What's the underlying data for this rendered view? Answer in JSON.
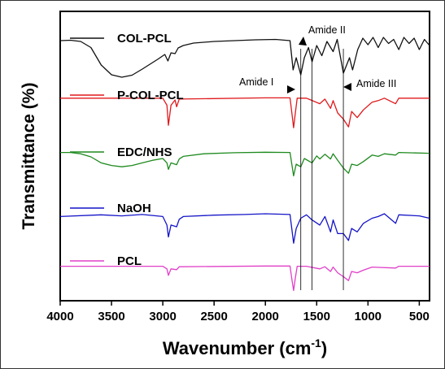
{
  "chart_data": {
    "type": "line",
    "xlabel": "Wavenumber (cm",
    "xlabel_sup": "-1",
    "xlabel_close": ")",
    "ylabel": "Transmittance (%)",
    "xlim": [
      4000,
      400
    ],
    "x_reversed": true,
    "xticks": [
      "4000",
      "3500",
      "3000",
      "2500",
      "2000",
      "1500",
      "1000",
      "500"
    ],
    "grid": false,
    "legend_placement": "left, stacked with each spectrum",
    "series": [
      {
        "name": "COL-PCL",
        "color": "#111111",
        "points": [
          [
            4000,
            0.92
          ],
          [
            3900,
            0.93
          ],
          [
            3800,
            0.9
          ],
          [
            3700,
            0.75
          ],
          [
            3600,
            0.32
          ],
          [
            3500,
            0.08
          ],
          [
            3400,
            0.02
          ],
          [
            3300,
            0.07
          ],
          [
            3200,
            0.22
          ],
          [
            3100,
            0.38
          ],
          [
            3050,
            0.46
          ],
          [
            2980,
            0.58
          ],
          [
            2950,
            0.42
          ],
          [
            2920,
            0.62
          ],
          [
            2880,
            0.6
          ],
          [
            2850,
            0.74
          ],
          [
            2800,
            0.8
          ],
          [
            2700,
            0.86
          ],
          [
            2500,
            0.9
          ],
          [
            2300,
            0.92
          ],
          [
            2100,
            0.94
          ],
          [
            1900,
            0.95
          ],
          [
            1760,
            0.92
          ],
          [
            1730,
            0.2
          ],
          [
            1700,
            0.5
          ],
          [
            1655,
            0.08
          ],
          [
            1620,
            0.5
          ],
          [
            1580,
            0.75
          ],
          [
            1545,
            0.4
          ],
          [
            1500,
            0.8
          ],
          [
            1450,
            0.55
          ],
          [
            1400,
            0.9
          ],
          [
            1340,
            0.65
          ],
          [
            1300,
            0.95
          ],
          [
            1240,
            0.12
          ],
          [
            1180,
            0.5
          ],
          [
            1150,
            0.2
          ],
          [
            1100,
            0.7
          ],
          [
            1050,
            0.98
          ],
          [
            1000,
            0.82
          ],
          [
            950,
            1.0
          ],
          [
            900,
            0.75
          ],
          [
            850,
            1.0
          ],
          [
            800,
            0.85
          ],
          [
            750,
            0.95
          ],
          [
            700,
            0.7
          ],
          [
            650,
            1.0
          ],
          [
            600,
            0.85
          ],
          [
            550,
            0.98
          ],
          [
            500,
            0.7
          ],
          [
            450,
            0.95
          ],
          [
            400,
            0.8
          ]
        ]
      },
      {
        "name": "P-COL-PCL",
        "color": "#e0191c",
        "points": [
          [
            4000,
            0.98
          ],
          [
            3000,
            0.98
          ],
          [
            2960,
            0.75
          ],
          [
            2945,
            0.1
          ],
          [
            2920,
            0.75
          ],
          [
            2880,
            0.92
          ],
          [
            2865,
            0.7
          ],
          [
            2840,
            0.95
          ],
          [
            2000,
            0.99
          ],
          [
            1760,
            0.99
          ],
          [
            1740,
            0.45
          ],
          [
            1725,
            0.02
          ],
          [
            1710,
            0.45
          ],
          [
            1690,
            0.98
          ],
          [
            1600,
            0.98
          ],
          [
            1470,
            0.8
          ],
          [
            1420,
            0.95
          ],
          [
            1365,
            0.65
          ],
          [
            1340,
            0.9
          ],
          [
            1295,
            0.5
          ],
          [
            1240,
            0.3
          ],
          [
            1190,
            0.05
          ],
          [
            1160,
            0.55
          ],
          [
            1105,
            0.35
          ],
          [
            1045,
            0.6
          ],
          [
            960,
            0.85
          ],
          [
            900,
            0.9
          ],
          [
            840,
            0.98
          ],
          [
            731,
            0.8
          ],
          [
            700,
            0.98
          ],
          [
            400,
            0.98
          ]
        ]
      },
      {
        "name": "EDC/NHS",
        "color": "#1f8a1f",
        "points": [
          [
            4000,
            0.95
          ],
          [
            3900,
            0.95
          ],
          [
            3800,
            0.9
          ],
          [
            3700,
            0.78
          ],
          [
            3600,
            0.55
          ],
          [
            3500,
            0.45
          ],
          [
            3400,
            0.4
          ],
          [
            3300,
            0.45
          ],
          [
            3200,
            0.55
          ],
          [
            3100,
            0.65
          ],
          [
            3000,
            0.72
          ],
          [
            2960,
            0.55
          ],
          [
            2945,
            0.3
          ],
          [
            2920,
            0.55
          ],
          [
            2865,
            0.48
          ],
          [
            2840,
            0.7
          ],
          [
            2800,
            0.8
          ],
          [
            2600,
            0.9
          ],
          [
            2300,
            0.94
          ],
          [
            2000,
            0.96
          ],
          [
            1760,
            0.95
          ],
          [
            1725,
            0.05
          ],
          [
            1700,
            0.5
          ],
          [
            1655,
            0.4
          ],
          [
            1620,
            0.72
          ],
          [
            1545,
            0.55
          ],
          [
            1500,
            0.82
          ],
          [
            1470,
            0.7
          ],
          [
            1420,
            0.88
          ],
          [
            1365,
            0.7
          ],
          [
            1340,
            0.9
          ],
          [
            1295,
            0.65
          ],
          [
            1240,
            0.35
          ],
          [
            1190,
            0.15
          ],
          [
            1160,
            0.5
          ],
          [
            1105,
            0.45
          ],
          [
            1045,
            0.6
          ],
          [
            960,
            0.85
          ],
          [
            900,
            0.8
          ],
          [
            840,
            0.9
          ],
          [
            731,
            0.85
          ],
          [
            700,
            0.95
          ],
          [
            400,
            0.92
          ]
        ]
      },
      {
        "name": "NaOH",
        "color": "#1414c8",
        "points": [
          [
            4000,
            0.8
          ],
          [
            3600,
            0.85
          ],
          [
            3400,
            0.82
          ],
          [
            3200,
            0.86
          ],
          [
            3000,
            0.8
          ],
          [
            2960,
            0.55
          ],
          [
            2945,
            0.2
          ],
          [
            2920,
            0.55
          ],
          [
            2865,
            0.5
          ],
          [
            2840,
            0.72
          ],
          [
            2800,
            0.8
          ],
          [
            2500,
            0.84
          ],
          [
            2200,
            0.86
          ],
          [
            2000,
            0.88
          ],
          [
            1760,
            0.86
          ],
          [
            1725,
            0.02
          ],
          [
            1700,
            0.45
          ],
          [
            1655,
            0.75
          ],
          [
            1600,
            0.85
          ],
          [
            1545,
            0.7
          ],
          [
            1470,
            0.55
          ],
          [
            1420,
            0.8
          ],
          [
            1365,
            0.35
          ],
          [
            1340,
            0.7
          ],
          [
            1295,
            0.3
          ],
          [
            1240,
            0.3
          ],
          [
            1190,
            0.1
          ],
          [
            1160,
            0.45
          ],
          [
            1105,
            0.35
          ],
          [
            1045,
            0.6
          ],
          [
            960,
            0.75
          ],
          [
            900,
            0.8
          ],
          [
            840,
            0.88
          ],
          [
            731,
            0.6
          ],
          [
            700,
            0.85
          ],
          [
            500,
            0.82
          ],
          [
            400,
            0.75
          ]
        ]
      },
      {
        "name": "PCL",
        "color": "#e040c8",
        "points": [
          [
            4000,
            0.95
          ],
          [
            3000,
            0.95
          ],
          [
            2960,
            0.85
          ],
          [
            2945,
            0.6
          ],
          [
            2920,
            0.85
          ],
          [
            2865,
            0.82
          ],
          [
            2840,
            0.93
          ],
          [
            2000,
            0.96
          ],
          [
            1760,
            0.96
          ],
          [
            1740,
            0.4
          ],
          [
            1725,
            0.02
          ],
          [
            1710,
            0.45
          ],
          [
            1690,
            0.95
          ],
          [
            1600,
            0.95
          ],
          [
            1470,
            0.85
          ],
          [
            1420,
            0.93
          ],
          [
            1365,
            0.75
          ],
          [
            1340,
            0.92
          ],
          [
            1295,
            0.7
          ],
          [
            1240,
            0.55
          ],
          [
            1190,
            0.4
          ],
          [
            1160,
            0.75
          ],
          [
            1105,
            0.7
          ],
          [
            1045,
            0.8
          ],
          [
            960,
            0.92
          ],
          [
            731,
            0.88
          ],
          [
            700,
            0.95
          ],
          [
            400,
            0.95
          ]
        ]
      }
    ],
    "annotations": [
      {
        "text": "Amide I",
        "x": 1655
      },
      {
        "text": "Amide II",
        "x": 1545
      },
      {
        "text": "Amide III",
        "x": 1240
      }
    ]
  }
}
